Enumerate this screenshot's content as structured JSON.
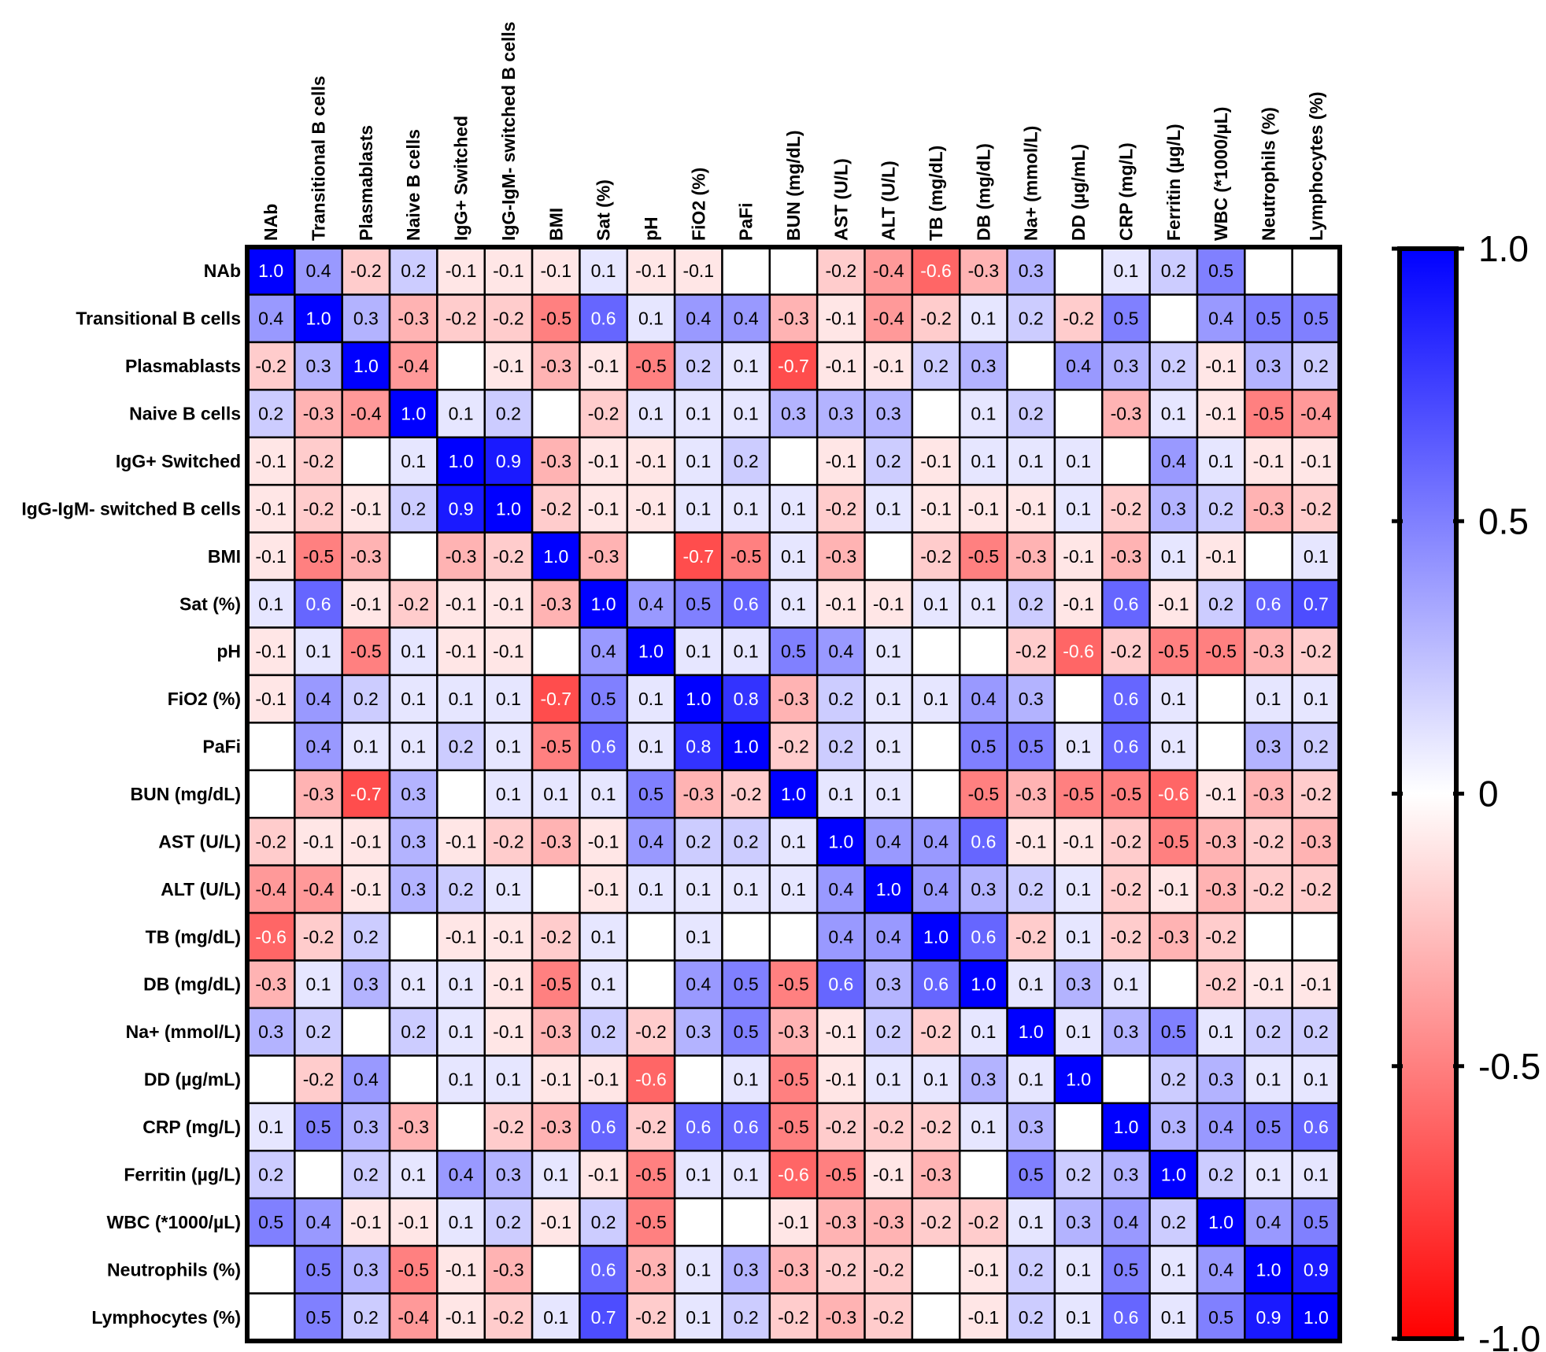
{
  "chart_data": {
    "type": "heatmap",
    "title": "",
    "labels": [
      "NAb",
      "Transitional B cells",
      "Plasmablasts",
      "Naive B cells",
      "IgG+ Switched",
      "IgG-IgM- switched B cells",
      "BMI",
      "Sat (%)",
      "pH",
      "FiO2 (%)",
      "PaFi",
      "BUN (mg/dL)",
      "AST (U/L)",
      "ALT (U/L)",
      "TB (mg/dL)",
      "DB (mg/dL)",
      "Na+ (mmol/L)",
      "DD (µg/mL)",
      "CRP (mg/L)",
      "Ferritin (µg/L)",
      "WBC (*1000/µL)",
      "Neutrophils (%)",
      "Lymphocytes (%)"
    ],
    "values": [
      [
        "1.0",
        "0.4",
        "-0.2",
        "0.2",
        "-0.1",
        "-0.1",
        "-0.1",
        "0.1",
        "-0.1",
        "-0.1",
        "",
        "",
        "-0.2",
        "-0.4",
        "-0.6",
        "-0.3",
        "0.3",
        "",
        "0.1",
        "0.2",
        "0.5",
        "",
        ""
      ],
      [
        "0.4",
        "1.0",
        "0.3",
        "-0.3",
        "-0.2",
        "-0.2",
        "-0.5",
        "0.6",
        "0.1",
        "0.4",
        "0.4",
        "-0.3",
        "-0.1",
        "-0.4",
        "-0.2",
        "0.1",
        "0.2",
        "-0.2",
        "0.5",
        "",
        "0.4",
        "0.5",
        "0.5"
      ],
      [
        "-0.2",
        "0.3",
        "1.0",
        "-0.4",
        "",
        "-0.1",
        "-0.3",
        "-0.1",
        "-0.5",
        "0.2",
        "0.1",
        "-0.7",
        "-0.1",
        "-0.1",
        "0.2",
        "0.3",
        "",
        "0.4",
        "0.3",
        "0.2",
        "-0.1",
        "0.3",
        "0.2"
      ],
      [
        "0.2",
        "-0.3",
        "-0.4",
        "1.0",
        "0.1",
        "0.2",
        "",
        "-0.2",
        "0.1",
        "0.1",
        "0.1",
        "0.3",
        "0.3",
        "0.3",
        "",
        "0.1",
        "0.2",
        "",
        "-0.3",
        "0.1",
        "-0.1",
        "-0.5",
        "-0.4"
      ],
      [
        "-0.1",
        "-0.2",
        "",
        "0.1",
        "1.0",
        "0.9",
        "-0.3",
        "-0.1",
        "-0.1",
        "0.1",
        "0.2",
        "",
        "-0.1",
        "0.2",
        "-0.1",
        "0.1",
        "0.1",
        "0.1",
        "",
        "0.4",
        "0.1",
        "-0.1",
        "-0.1"
      ],
      [
        "-0.1",
        "-0.2",
        "-0.1",
        "0.2",
        "0.9",
        "1.0",
        "-0.2",
        "-0.1",
        "-0.1",
        "0.1",
        "0.1",
        "0.1",
        "-0.2",
        "0.1",
        "-0.1",
        "-0.1",
        "-0.1",
        "0.1",
        "-0.2",
        "0.3",
        "0.2",
        "-0.3",
        "-0.2"
      ],
      [
        "-0.1",
        "-0.5",
        "-0.3",
        "",
        "-0.3",
        "-0.2",
        "1.0",
        "-0.3",
        "",
        "-0.7",
        "-0.5",
        "0.1",
        "-0.3",
        "",
        "-0.2",
        "-0.5",
        "-0.3",
        "-0.1",
        "-0.3",
        "0.1",
        "-0.1",
        "",
        "0.1"
      ],
      [
        "0.1",
        "0.6",
        "-0.1",
        "-0.2",
        "-0.1",
        "-0.1",
        "-0.3",
        "1.0",
        "0.4",
        "0.5",
        "0.6",
        "0.1",
        "-0.1",
        "-0.1",
        "0.1",
        "0.1",
        "0.2",
        "-0.1",
        "0.6",
        "-0.1",
        "0.2",
        "0.6",
        "0.7"
      ],
      [
        "-0.1",
        "0.1",
        "-0.5",
        "0.1",
        "-0.1",
        "-0.1",
        "",
        "0.4",
        "1.0",
        "0.1",
        "0.1",
        "0.5",
        "0.4",
        "0.1",
        "",
        "",
        "-0.2",
        "-0.6",
        "-0.2",
        "-0.5",
        "-0.5",
        "-0.3",
        "-0.2"
      ],
      [
        "-0.1",
        "0.4",
        "0.2",
        "0.1",
        "0.1",
        "0.1",
        "-0.7",
        "0.5",
        "0.1",
        "1.0",
        "0.8",
        "-0.3",
        "0.2",
        "0.1",
        "0.1",
        "0.4",
        "0.3",
        "",
        "0.6",
        "0.1",
        "",
        "0.1",
        "0.1"
      ],
      [
        "",
        "0.4",
        "0.1",
        "0.1",
        "0.2",
        "0.1",
        "-0.5",
        "0.6",
        "0.1",
        "0.8",
        "1.0",
        "-0.2",
        "0.2",
        "0.1",
        "",
        "0.5",
        "0.5",
        "0.1",
        "0.6",
        "0.1",
        "",
        "0.3",
        "0.2"
      ],
      [
        "",
        "-0.3",
        "-0.7",
        "0.3",
        "",
        "0.1",
        "0.1",
        "0.1",
        "0.5",
        "-0.3",
        "-0.2",
        "1.0",
        "0.1",
        "0.1",
        "",
        "-0.5",
        "-0.3",
        "-0.5",
        "-0.5",
        "-0.6",
        "-0.1",
        "-0.3",
        "-0.2"
      ],
      [
        "-0.2",
        "-0.1",
        "-0.1",
        "0.3",
        "-0.1",
        "-0.2",
        "-0.3",
        "-0.1",
        "0.4",
        "0.2",
        "0.2",
        "0.1",
        "1.0",
        "0.4",
        "0.4",
        "0.6",
        "-0.1",
        "-0.1",
        "-0.2",
        "-0.5",
        "-0.3",
        "-0.2",
        "-0.3"
      ],
      [
        "-0.4",
        "-0.4",
        "-0.1",
        "0.3",
        "0.2",
        "0.1",
        "",
        "-0.1",
        "0.1",
        "0.1",
        "0.1",
        "0.1",
        "0.4",
        "1.0",
        "0.4",
        "0.3",
        "0.2",
        "0.1",
        "-0.2",
        "-0.1",
        "-0.3",
        "-0.2",
        "-0.2"
      ],
      [
        "-0.6",
        "-0.2",
        "0.2",
        "",
        "-0.1",
        "-0.1",
        "-0.2",
        "0.1",
        "",
        "0.1",
        "",
        "",
        "0.4",
        "0.4",
        "1.0",
        "0.6",
        "-0.2",
        "0.1",
        "-0.2",
        "-0.3",
        "-0.2",
        "",
        ""
      ],
      [
        "-0.3",
        "0.1",
        "0.3",
        "0.1",
        "0.1",
        "-0.1",
        "-0.5",
        "0.1",
        "",
        "0.4",
        "0.5",
        "-0.5",
        "0.6",
        "0.3",
        "0.6",
        "1.0",
        "0.1",
        "0.3",
        "0.1",
        "",
        "-0.2",
        "-0.1",
        "-0.1"
      ],
      [
        "0.3",
        "0.2",
        "",
        "0.2",
        "0.1",
        "-0.1",
        "-0.3",
        "0.2",
        "-0.2",
        "0.3",
        "0.5",
        "-0.3",
        "-0.1",
        "0.2",
        "-0.2",
        "0.1",
        "1.0",
        "0.1",
        "0.3",
        "0.5",
        "0.1",
        "0.2",
        "0.2"
      ],
      [
        "",
        "-0.2",
        "0.4",
        "",
        "0.1",
        "0.1",
        "-0.1",
        "-0.1",
        "-0.6",
        "",
        "0.1",
        "-0.5",
        "-0.1",
        "0.1",
        "0.1",
        "0.3",
        "0.1",
        "1.0",
        "",
        "0.2",
        "0.3",
        "0.1",
        "0.1"
      ],
      [
        "0.1",
        "0.5",
        "0.3",
        "-0.3",
        "",
        "-0.2",
        "-0.3",
        "0.6",
        "-0.2",
        "0.6",
        "0.6",
        "-0.5",
        "-0.2",
        "-0.2",
        "-0.2",
        "0.1",
        "0.3",
        "",
        "1.0",
        "0.3",
        "0.4",
        "0.5",
        "0.6"
      ],
      [
        "0.2",
        "",
        "0.2",
        "0.1",
        "0.4",
        "0.3",
        "0.1",
        "-0.1",
        "-0.5",
        "0.1",
        "0.1",
        "-0.6",
        "-0.5",
        "-0.1",
        "-0.3",
        "",
        "0.5",
        "0.2",
        "0.3",
        "1.0",
        "0.2",
        "0.1",
        "0.1"
      ],
      [
        "0.5",
        "0.4",
        "-0.1",
        "-0.1",
        "0.1",
        "0.2",
        "-0.1",
        "0.2",
        "-0.5",
        "",
        "",
        "-0.1",
        "-0.3",
        "-0.3",
        "-0.2",
        "-0.2",
        "0.1",
        "0.3",
        "0.4",
        "0.2",
        "1.0",
        "0.4",
        "0.5"
      ],
      [
        "",
        "0.5",
        "0.3",
        "-0.5",
        "-0.1",
        "-0.3",
        "",
        "0.6",
        "-0.3",
        "0.1",
        "0.3",
        "-0.3",
        "-0.2",
        "-0.2",
        "",
        "-0.1",
        "0.2",
        "0.1",
        "0.5",
        "0.1",
        "0.4",
        "1.0",
        "0.9"
      ],
      [
        "",
        "0.5",
        "0.2",
        "-0.4",
        "-0.1",
        "-0.2",
        "0.1",
        "0.7",
        "-0.2",
        "0.1",
        "0.2",
        "-0.2",
        "-0.3",
        "-0.2",
        "",
        "-0.1",
        "0.2",
        "0.1",
        "0.6",
        "0.1",
        "0.5",
        "0.9",
        "1.0"
      ]
    ],
    "colorbar": {
      "range": [
        -1.0,
        1.0
      ],
      "ticks": [
        1.0,
        0.5,
        0,
        -0.5,
        -1.0
      ],
      "tick_labels": [
        "1.0",
        "0.5",
        "0",
        "-0.5",
        "-1.0"
      ],
      "low_color": "#ff0000",
      "mid_color": "#ffffff",
      "high_color": "#0000ff"
    }
  }
}
